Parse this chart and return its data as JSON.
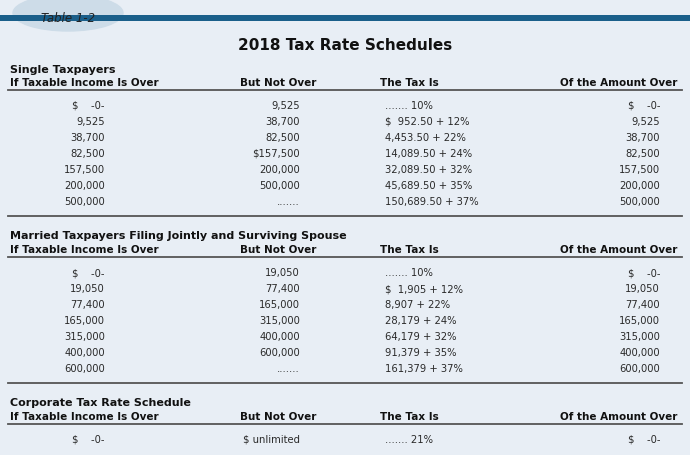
{
  "title": "2018 Tax Rate Schedules",
  "table_label": "Table 1-2",
  "bg_color": "#e8eef5",
  "header_bar_color": "#1a5f8a",
  "section1_title": "Single Taxpayers",
  "section2_title": "Married Taxpayers Filing Jointly and Surviving Spouse",
  "section3_title": "Corporate Tax Rate Schedule",
  "col_headers": [
    "If Taxable Income Is Over",
    "But Not Over",
    "The Tax Is",
    "Of the Amount Over"
  ],
  "single_rows": [
    [
      "$    -0-",
      "9,525",
      "....... 10%",
      "$    -0-"
    ],
    [
      "9,525",
      "38,700",
      "$  952.50 + 12%",
      "9,525"
    ],
    [
      "38,700",
      "82,500",
      "4,453.50 + 22%",
      "38,700"
    ],
    [
      "82,500",
      "$157,500",
      "14,089.50 + 24%",
      "82,500"
    ],
    [
      "157,500",
      "200,000",
      "32,089.50 + 32%",
      "157,500"
    ],
    [
      "200,000",
      "500,000",
      "45,689.50 + 35%",
      "200,000"
    ],
    [
      "500,000",
      ".......",
      "150,689.50 + 37%",
      "500,000"
    ]
  ],
  "married_rows": [
    [
      "$    -0-",
      "19,050",
      "....... 10%",
      "$    -0-"
    ],
    [
      "19,050",
      "77,400",
      "$  1,905 + 12%",
      "19,050"
    ],
    [
      "77,400",
      "165,000",
      "8,907 + 22%",
      "77,400"
    ],
    [
      "165,000",
      "315,000",
      "28,179 + 24%",
      "165,000"
    ],
    [
      "315,000",
      "400,000",
      "64,179 + 32%",
      "315,000"
    ],
    [
      "400,000",
      "600,000",
      "91,379 + 35%",
      "400,000"
    ],
    [
      "600,000",
      ".......",
      "161,379 + 37%",
      "600,000"
    ]
  ],
  "corporate_rows": [
    [
      "$    -0-",
      "$ unlimited",
      "....... 21%",
      "$    -0-"
    ]
  ],
  "text_color": "#2a2a2a",
  "line_color": "#888888",
  "bold_line_color": "#555555"
}
